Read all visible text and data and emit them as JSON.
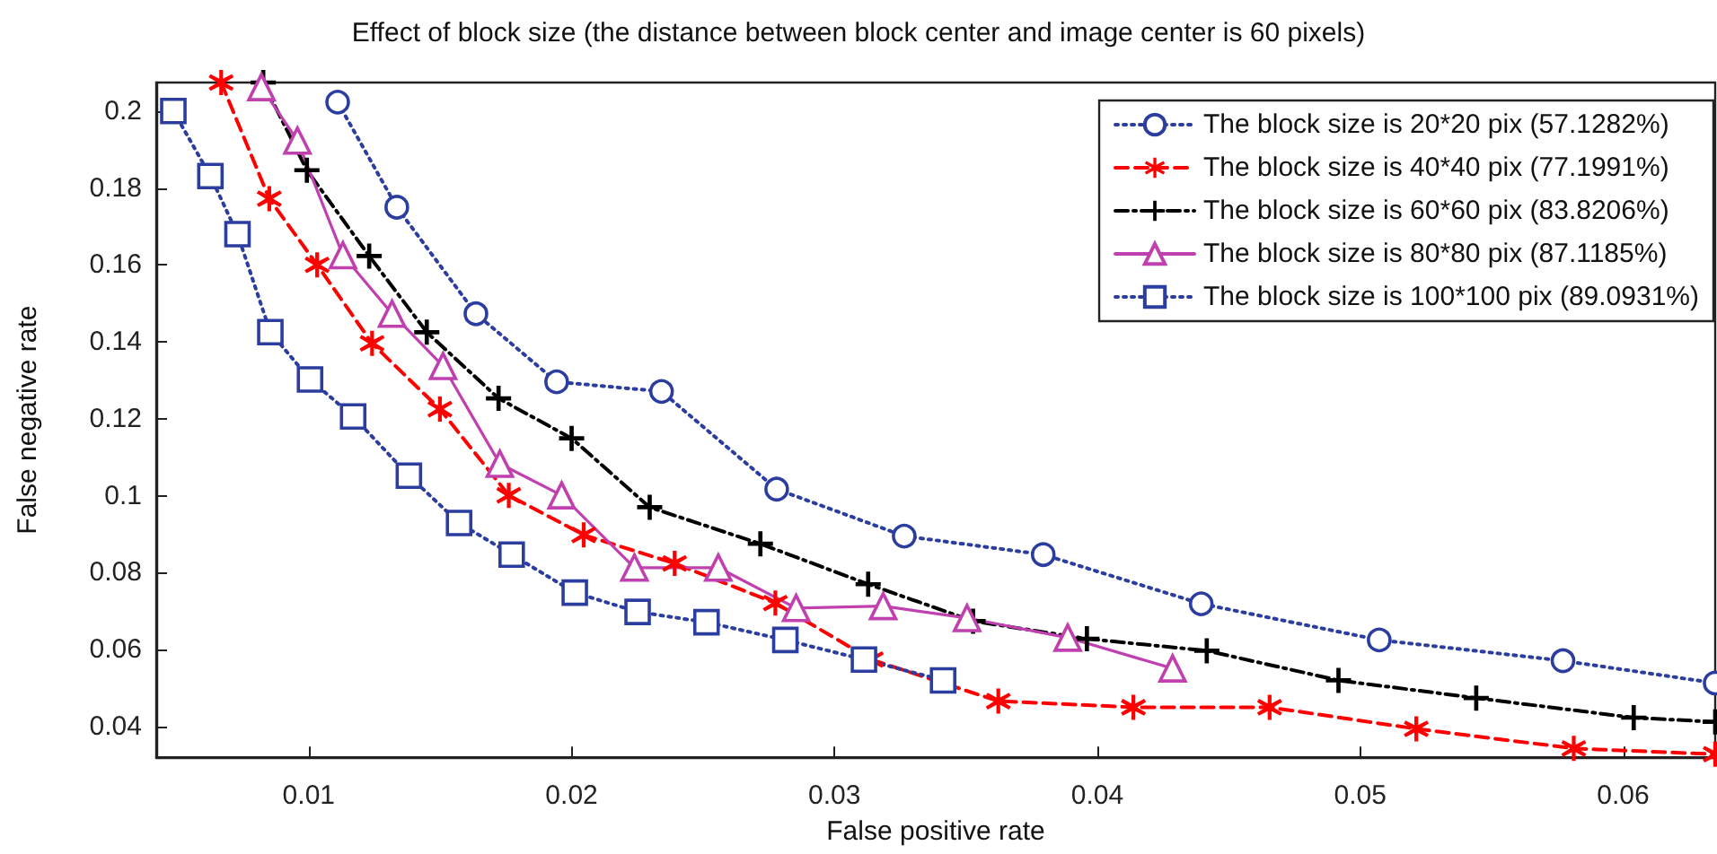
{
  "chart_data": {
    "type": "line",
    "title": "Effect of block size (the distance between block center and image center is 60 pixels)",
    "xlabel": "False positive rate",
    "ylabel": "False negative rate",
    "xlim": [
      0.0042,
      0.0635
    ],
    "ylim": [
      0.032,
      0.2074
    ],
    "xticks": [
      0.01,
      0.02,
      0.03,
      0.04,
      0.05,
      0.06
    ],
    "yticks": [
      0.04,
      0.06,
      0.08,
      0.1,
      0.12,
      0.14,
      0.16,
      0.18,
      0.2
    ],
    "grid": false,
    "legend": "top right",
    "series": [
      {
        "name": "The block size is 20*20 pix (57.1282%)",
        "color": "#2b3ea0",
        "marker": "circle",
        "line_style": "dotted",
        "x": [
          0.0111,
          0.01335,
          0.01636,
          0.01943,
          0.02342,
          0.0278,
          0.03265,
          0.03794,
          0.04395,
          0.05072,
          0.05771,
          0.0635
        ],
        "values": [
          0.2023,
          0.175,
          0.1473,
          0.1296,
          0.1271,
          0.1017,
          0.0895,
          0.0847,
          0.0719,
          0.0625,
          0.0571,
          0.0513
        ]
      },
      {
        "name": "The block size is 40*40 pix (77.1991%)",
        "color": "#ff0000",
        "marker": "star",
        "line_style": "dashed",
        "x": [
          0.00667,
          0.0085,
          0.01032,
          0.01241,
          0.01499,
          0.01761,
          0.02046,
          0.02392,
          0.02775,
          0.0314,
          0.03623,
          0.04137,
          0.04655,
          0.05213,
          0.05812,
          0.0635
        ],
        "values": [
          0.2074,
          0.1772,
          0.16,
          0.1396,
          0.1225,
          0.1001,
          0.0898,
          0.0824,
          0.0721,
          0.0574,
          0.0466,
          0.045,
          0.045,
          0.0394,
          0.0343,
          0.0328
        ]
      },
      {
        "name": "The block size is 60*60 pix (83.8206%)",
        "color": "#000000",
        "marker": "cross",
        "line_style": "dashdot",
        "x": [
          0.00827,
          0.00993,
          0.0123,
          0.01449,
          0.01722,
          0.02,
          0.02297,
          0.02718,
          0.03128,
          0.03527,
          0.0396,
          0.04416,
          0.04917,
          0.05441,
          0.0604,
          0.0635
        ],
        "values": [
          0.2074,
          0.1846,
          0.1623,
          0.1425,
          0.1253,
          0.1149,
          0.097,
          0.0875,
          0.077,
          0.0674,
          0.0628,
          0.0597,
          0.052,
          0.0474,
          0.0423,
          0.0412
        ]
      },
      {
        "name": "The block size is 80*80 pix (87.1185%)",
        "color": "#c040b0",
        "marker": "triangle",
        "line_style": "solid",
        "x": [
          0.0082,
          0.00957,
          0.0113,
          0.01317,
          0.01511,
          0.01727,
          0.01962,
          0.02239,
          0.02558,
          0.02854,
          0.03185,
          0.03504,
          0.03887,
          0.04286
        ],
        "values": [
          0.2062,
          0.1923,
          0.1625,
          0.1473,
          0.1337,
          0.1083,
          0.1001,
          0.0813,
          0.0813,
          0.0708,
          0.0713,
          0.0682,
          0.0631,
          0.0551
        ]
      },
      {
        "name": "The block size is 100*100 pix (89.0931%)",
        "color": "#2b3ea0",
        "marker": "square",
        "line_style": "dotted",
        "x": [
          0.00485,
          0.00626,
          0.00729,
          0.00854,
          0.01005,
          0.01169,
          0.01381,
          0.01572,
          0.01772,
          0.02012,
          0.02251,
          0.02513,
          0.02813,
          0.03112,
          0.03413
        ],
        "values": [
          0.2,
          0.1831,
          0.168,
          0.1425,
          0.1302,
          0.1206,
          0.1052,
          0.0929,
          0.0847,
          0.0748,
          0.0698,
          0.0671,
          0.0625,
          0.0574,
          0.052
        ]
      }
    ]
  }
}
